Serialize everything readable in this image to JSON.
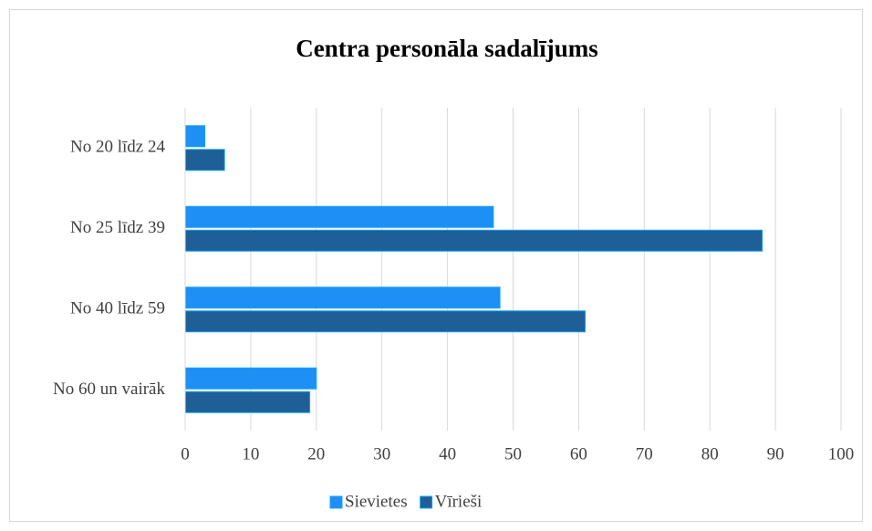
{
  "chart_data": {
    "type": "bar",
    "orientation": "horizontal",
    "title": "Centra personāla sadalījums",
    "categories": [
      "No 20 līdz 24",
      "No 25 līdz 39",
      "No 40 līdz 59",
      "No 60 un vairāk"
    ],
    "series": [
      {
        "name": "Sievietes",
        "color": "#1e8ff5",
        "values": [
          3,
          47,
          48,
          20
        ]
      },
      {
        "name": "Vīrieši",
        "color": "#1d5f96",
        "values": [
          6,
          88,
          61,
          19
        ]
      }
    ],
    "xlim": [
      0,
      100
    ],
    "xticks": [
      0,
      10,
      20,
      30,
      40,
      50,
      60,
      70,
      80,
      90,
      100
    ],
    "grid": true,
    "legend": "bottom"
  }
}
